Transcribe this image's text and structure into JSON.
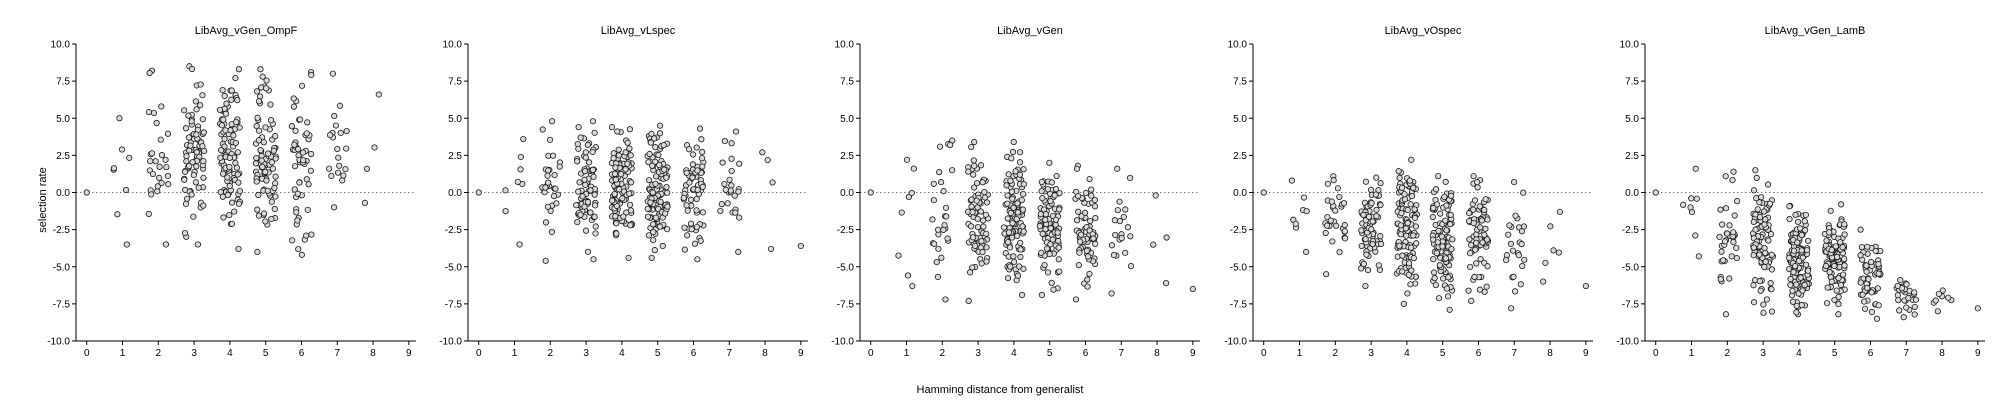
{
  "figure": {
    "xlabel": "Hamming distance from generalist",
    "ylabel": "selection rate"
  },
  "chart_data": [
    {
      "type": "scatter",
      "title": "LibAvg_vGen_OmpF",
      "xlabel": "Hamming distance from generalist",
      "ylabel": "selection rate",
      "xlim": [
        -0.3,
        9.2
      ],
      "ylim": [
        -10,
        10
      ],
      "xticks": [
        0,
        1,
        2,
        3,
        4,
        5,
        6,
        7,
        8,
        9
      ],
      "yticks": [
        -10,
        -7.5,
        -5,
        -2.5,
        0,
        2.5,
        5,
        7.5,
        10
      ],
      "reference_line": 0,
      "grid": false,
      "groups": [
        {
          "x": 0,
          "n": 1,
          "min": 0.0,
          "max": 0.0
        },
        {
          "x": 1,
          "n": 8,
          "min": -3.5,
          "max": 5.0
        },
        {
          "x": 2,
          "n": 28,
          "min": -3.5,
          "max": 8.2
        },
        {
          "x": 3,
          "n": 80,
          "min": -3.5,
          "max": 8.5
        },
        {
          "x": 4,
          "n": 100,
          "min": -3.8,
          "max": 8.3
        },
        {
          "x": 5,
          "n": 85,
          "min": -4.0,
          "max": 8.3
        },
        {
          "x": 6,
          "n": 55,
          "min": -4.2,
          "max": 8.1
        },
        {
          "x": 7,
          "n": 20,
          "min": -1.0,
          "max": 8.0
        },
        {
          "x": 8,
          "n": 4,
          "min": -0.7,
          "max": 6.6
        }
      ]
    },
    {
      "type": "scatter",
      "title": "LibAvg_vLspec",
      "xlabel": "Hamming distance from generalist",
      "ylabel": "selection rate",
      "xlim": [
        -0.3,
        9.2
      ],
      "ylim": [
        -10,
        10
      ],
      "xticks": [
        0,
        1,
        2,
        3,
        4,
        5,
        6,
        7,
        8,
        9
      ],
      "yticks": [
        -10,
        -7.5,
        -5,
        -2.5,
        0,
        2.5,
        5,
        7.5,
        10
      ],
      "reference_line": 0,
      "grid": false,
      "groups": [
        {
          "x": 0,
          "n": 1,
          "min": 0.0,
          "max": 0.0
        },
        {
          "x": 1,
          "n": 8,
          "min": -3.5,
          "max": 3.6
        },
        {
          "x": 2,
          "n": 30,
          "min": -4.6,
          "max": 4.8
        },
        {
          "x": 3,
          "n": 80,
          "min": -4.5,
          "max": 4.8
        },
        {
          "x": 4,
          "n": 110,
          "min": -4.4,
          "max": 4.4
        },
        {
          "x": 5,
          "n": 110,
          "min": -4.4,
          "max": 4.5
        },
        {
          "x": 6,
          "n": 70,
          "min": -4.5,
          "max": 4.3
        },
        {
          "x": 7,
          "n": 25,
          "min": -4.0,
          "max": 4.1
        },
        {
          "x": 8,
          "n": 4,
          "min": -3.8,
          "max": 2.7
        },
        {
          "x": 9,
          "n": 1,
          "min": -3.6,
          "max": -3.6
        }
      ]
    },
    {
      "type": "scatter",
      "title": "LibAvg_vGen",
      "xlabel": "Hamming distance from generalist",
      "ylabel": "selection rate",
      "xlim": [
        -0.3,
        9.2
      ],
      "ylim": [
        -10,
        10
      ],
      "xticks": [
        0,
        1,
        2,
        3,
        4,
        5,
        6,
        7,
        8,
        9
      ],
      "yticks": [
        -10,
        -7.5,
        -5,
        -2.5,
        0,
        2.5,
        5,
        7.5,
        10
      ],
      "reference_line": 0,
      "grid": false,
      "groups": [
        {
          "x": 0,
          "n": 1,
          "min": 0.0,
          "max": 0.0
        },
        {
          "x": 1,
          "n": 8,
          "min": -6.3,
          "max": 2.2
        },
        {
          "x": 2,
          "n": 28,
          "min": -7.2,
          "max": 3.5
        },
        {
          "x": 3,
          "n": 80,
          "min": -7.3,
          "max": 3.4
        },
        {
          "x": 4,
          "n": 110,
          "min": -6.9,
          "max": 3.4
        },
        {
          "x": 5,
          "n": 100,
          "min": -6.9,
          "max": 2.0
        },
        {
          "x": 6,
          "n": 70,
          "min": -7.2,
          "max": 1.8
        },
        {
          "x": 7,
          "n": 20,
          "min": -6.8,
          "max": 1.6
        },
        {
          "x": 8,
          "n": 4,
          "min": -6.1,
          "max": -0.2
        },
        {
          "x": 9,
          "n": 1,
          "min": -6.5,
          "max": -6.5
        }
      ]
    },
    {
      "type": "scatter",
      "title": "LibAvg_vOspec",
      "xlabel": "Hamming distance from generalist",
      "ylabel": "selection rate",
      "xlim": [
        -0.3,
        9.2
      ],
      "ylim": [
        -10,
        10
      ],
      "xticks": [
        0,
        1,
        2,
        3,
        4,
        5,
        6,
        7,
        8,
        9
      ],
      "yticks": [
        -10,
        -7.5,
        -5,
        -2.5,
        0,
        2.5,
        5,
        7.5,
        10
      ],
      "reference_line": 0,
      "grid": false,
      "groups": [
        {
          "x": 0,
          "n": 1,
          "min": 0.0,
          "max": 0.0
        },
        {
          "x": 1,
          "n": 8,
          "min": -4.0,
          "max": 0.8
        },
        {
          "x": 2,
          "n": 30,
          "min": -5.5,
          "max": 1.1
        },
        {
          "x": 3,
          "n": 80,
          "min": -6.3,
          "max": 1.0
        },
        {
          "x": 4,
          "n": 120,
          "min": -7.5,
          "max": 2.2
        },
        {
          "x": 5,
          "n": 110,
          "min": -7.9,
          "max": 1.1
        },
        {
          "x": 6,
          "n": 75,
          "min": -7.3,
          "max": 1.1
        },
        {
          "x": 7,
          "n": 25,
          "min": -7.8,
          "max": 0.7
        },
        {
          "x": 8,
          "n": 6,
          "min": -6.0,
          "max": -1.3
        },
        {
          "x": 9,
          "n": 1,
          "min": -6.3,
          "max": -6.3
        }
      ]
    },
    {
      "type": "scatter",
      "title": "LibAvg_vGen_LamB",
      "xlabel": "Hamming distance from generalist",
      "ylabel": "selection rate",
      "xlim": [
        -0.3,
        9.2
      ],
      "ylim": [
        -10,
        10
      ],
      "xticks": [
        0,
        1,
        2,
        3,
        4,
        5,
        6,
        7,
        8,
        9
      ],
      "yticks": [
        -10,
        -7.5,
        -5,
        -2.5,
        0,
        2.5,
        5,
        7.5,
        10
      ],
      "reference_line": 0,
      "grid": false,
      "groups": [
        {
          "x": 0,
          "n": 1,
          "min": 0.0,
          "max": 0.0
        },
        {
          "x": 1,
          "n": 8,
          "min": -4.3,
          "max": 1.6
        },
        {
          "x": 2,
          "n": 35,
          "min": -8.2,
          "max": 1.4
        },
        {
          "x": 3,
          "n": 100,
          "min": -8.1,
          "max": 1.5
        },
        {
          "x": 4,
          "n": 130,
          "min": -8.2,
          "max": -0.9
        },
        {
          "x": 5,
          "n": 110,
          "min": -8.2,
          "max": -0.8
        },
        {
          "x": 6,
          "n": 60,
          "min": -8.5,
          "max": -2.5
        },
        {
          "x": 7,
          "n": 30,
          "min": -8.4,
          "max": -5.9
        },
        {
          "x": 8,
          "n": 8,
          "min": -8.0,
          "max": -6.6
        },
        {
          "x": 9,
          "n": 1,
          "min": -7.8,
          "max": -7.8
        }
      ]
    }
  ]
}
